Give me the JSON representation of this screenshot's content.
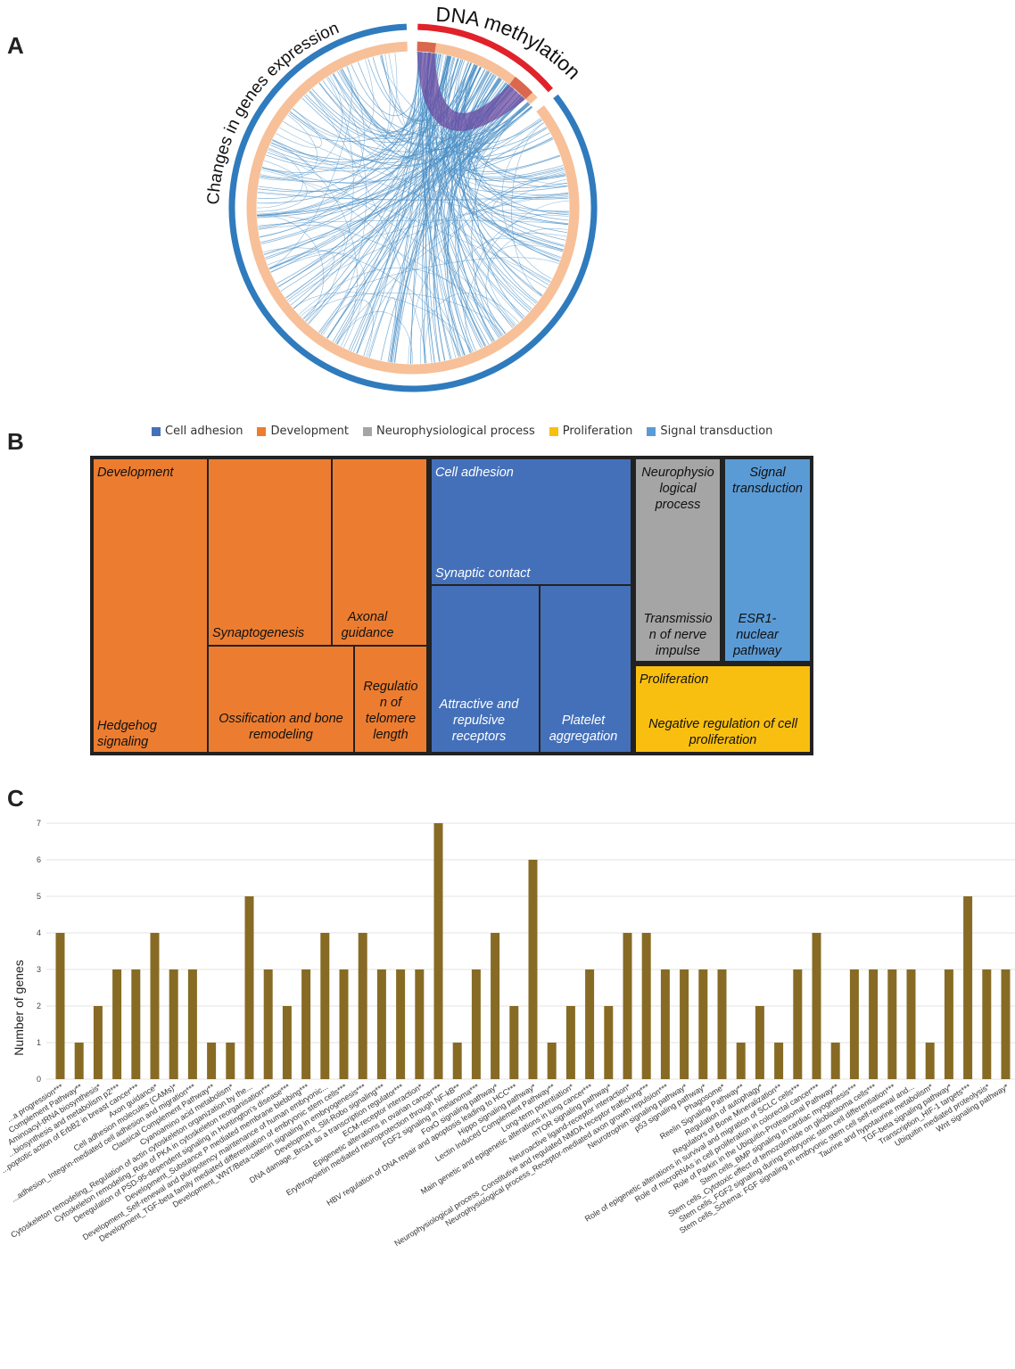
{
  "panels": {
    "a": "A",
    "b": "B",
    "c": "C"
  },
  "circos": {
    "outer_label_left": "Changes in genes expression",
    "outer_label_right": "DNA methylation",
    "colors": {
      "expression": "#2f7bbd",
      "methylation": "#e0222b",
      "inner_track": "#f7c098",
      "links": "#4a8fc6",
      "methylation_links": "#6a4aa0"
    }
  },
  "chart_data": [
    {
      "type": "treemap",
      "legend": [
        {
          "name": "Cell adhesion",
          "color": "#4470b9"
        },
        {
          "name": "Development",
          "color": "#ec7d30"
        },
        {
          "name": "Neurophysiological process",
          "color": "#a5a5a5"
        },
        {
          "name": "Proliferation",
          "color": "#f9bf10"
        },
        {
          "name": "Signal transduction",
          "color": "#5b9bd5"
        }
      ],
      "tiles": [
        {
          "group": "Development",
          "label": "Hedgehog signaling"
        },
        {
          "group": "Development",
          "label": "Synaptogenesis"
        },
        {
          "group": "Development",
          "label": "Axonal guidance"
        },
        {
          "group": "Development",
          "label": "Ossification and bone remodeling"
        },
        {
          "group": "Development",
          "label": "Regulation of telomere length"
        },
        {
          "group": "Cell adhesion",
          "label": "Synaptic contact"
        },
        {
          "group": "Cell adhesion",
          "label": "Attractive and repulsive receptors"
        },
        {
          "group": "Cell adhesion",
          "label": "Platelet aggregation"
        },
        {
          "group": "Neurophysiological process",
          "label": "Transmission of nerve impulse"
        },
        {
          "group": "Signal transduction",
          "label": "ESR1-nuclear pathway"
        },
        {
          "group": "Proliferation",
          "label": "Negative regulation of cell proliferation"
        }
      ],
      "texts": {
        "development_header": "Development",
        "hedgehog": "Hedgehog\nsignaling",
        "synaptogenesis": "Synaptogenesis",
        "axonal": "Axonal\nguidance",
        "ossification": "Ossification and bone\nremodeling",
        "telomere": "Regulatio\nn of\ntelomere\nlength",
        "adhesion_header": "Cell adhesion",
        "synaptic": "Synaptic contact",
        "attractive": "Attractive and\nrepulsive\nreceptors",
        "platelet": "Platelet\naggregation",
        "neuro_header": "Neurophysio\nlogical\nprocess",
        "transmission": "Transmissio\nn of nerve\nimpulse",
        "signal_header": "Signal\ntransduction",
        "esr1": "ESR1-\nnuclear\npathway",
        "prolif_header": "Proliferation",
        "negative": "Negative regulation of cell\nproliferation"
      }
    },
    {
      "type": "bar",
      "ylabel": "Number of genes",
      "ylim": [
        0,
        7
      ],
      "yticks": [
        0,
        1,
        2,
        3,
        4,
        5,
        6,
        7
      ],
      "bar_color": "#876b24",
      "grid": true,
      "categories": [
        "...a progression***",
        "Complement Pathway**",
        "Aminoacyl-tRNA biosynthesis*",
        "...biosynthesis and metabolism p2***",
        "...poptotic action of ErbB2 in breast cancer***",
        "Axon guidance*",
        "Cell adhesion molecules (CAMs)*",
        "...adhesion_Integrin-mediated cell adhesion and migration***",
        "Classical Complement Pathway**",
        "Cyanoamino acid metabolism*",
        "Cytoskeleton remodeling_Regulation of actin cytoskeleton organization by the...",
        "Cytoskeleton remodeling_Role of PKA in cytoskeleton reorganisation***",
        "Deregulation of PSD-95-dependent signaling in Huntington's disease***",
        "Development_Substance P mediated membrane blebbing***",
        "Development_Self-renewal and pluripotency maintenance of human embryonic...",
        "Development_TGF-beta family mediated differentiation of embryonic stem cells***",
        "Development_WNT/Beta-catenin signaling in embryogenesis***",
        "Development_Slit-Robo signaling***",
        "DNA damage_Brca1 as a transcription regulator***",
        "ECM-receptor interaction*",
        "Epigenetic alterations in ovarian cancer***",
        "Erythropoietin mediated neuroprotection through NF-kB**",
        "FGF2 signaling in melanoma***",
        "FoxO signaling pathway*",
        "HBV regulation of DNA repair and apoptosis leading to HCC***",
        "Hippo signaling pathway*",
        "Lectin Induced Complement Pathway**",
        "Long-term potentiation*",
        "Main genetic and epigenetic alterations in lung cancer***",
        "mTOR signaling pathway*",
        "Neuroactive ligand-receptor interaction*",
        "Neurophysiological process_Constitutive and regulated NMDA receptor trafficking***",
        "Neurophysiological process_Receptor-mediated axon growth repulsion***",
        "Neurotrophin signaling pathway*",
        "p53 signaling pathway*",
        "Phagosome*",
        "Reelin Signaling Pathway**",
        "Regulation of autophagy*",
        "Regulators of Bone Mineralization**",
        "Role of epigenetic alterations in survival and migration of SCLC cells***",
        "Role of microRNAs in cell proliferation in colorectal cancer***",
        "Role of Parkin in the Ubiquitin-Proteasomal Pathway**",
        "Stem cells_BMP signaling in cardiac myogenesis***",
        "Stem cells_Cytotoxic effect of temozolomide on glioblastoma cells***",
        "Stem cells_FGF2 signaling during embryonic stem cell differentiation***",
        "Stem cells_Schema: FGF signaling in embryonic stem cell self-renewal and...",
        "Taurine and hypotaurine metabolism*",
        "TGF-beta signaling pathway*",
        "Transcription_HIF-1 targets***",
        "Ubiquitin mediated proteolysis*",
        "Wnt signaling pathway*"
      ],
      "values": [
        4,
        1,
        2,
        3,
        3,
        4,
        3,
        3,
        1,
        1,
        5,
        3,
        2,
        3,
        4,
        3,
        4,
        3,
        3,
        3,
        7,
        1,
        3,
        4,
        2,
        6,
        1,
        2,
        3,
        2,
        4,
        4,
        3,
        3,
        3,
        3,
        1,
        2,
        1,
        3,
        4,
        1,
        3,
        3,
        3,
        3,
        1,
        3,
        5,
        3,
        3
      ]
    }
  ]
}
